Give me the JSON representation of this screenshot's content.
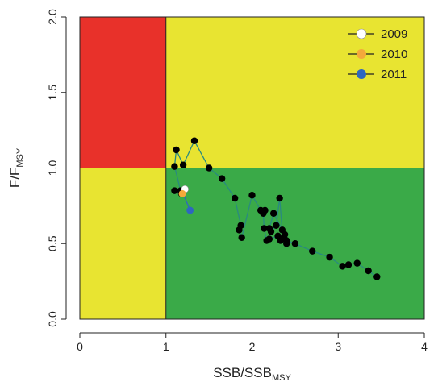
{
  "chart_data": {
    "type": "line",
    "title": "",
    "xlabel": {
      "main": "SSB/SSB",
      "sub": "MSY"
    },
    "ylabel": {
      "main": "F/F",
      "sub": "MSY"
    },
    "xlim": [
      0,
      4
    ],
    "ylim": [
      0,
      2
    ],
    "x_ticks": [
      "0",
      "1",
      "2",
      "3",
      "4"
    ],
    "y_ticks": [
      "0.0",
      "0.5",
      "1.0",
      "1.5",
      "2.0"
    ],
    "grid": false,
    "legend_position": "top-right",
    "reference_lines": {
      "x": 1.0,
      "y": 1.0
    },
    "zones": [
      {
        "name": "red",
        "x": [
          0,
          1
        ],
        "y": [
          1,
          2
        ],
        "color": "#e8312a"
      },
      {
        "name": "yellow-top",
        "x": [
          1,
          4
        ],
        "y": [
          1,
          2
        ],
        "color": "#e8e431"
      },
      {
        "name": "yellow-bottom",
        "x": [
          0,
          1
        ],
        "y": [
          0,
          1
        ],
        "color": "#e8e431"
      },
      {
        "name": "green",
        "x": [
          1,
          4
        ],
        "y": [
          0,
          1
        ],
        "color": "#3aaa48"
      }
    ],
    "series": [
      {
        "line_color": "#2a8a80",
        "marker_color": "#000000",
        "x": [
          3.45,
          3.35,
          3.22,
          3.12,
          3.05,
          2.9,
          2.7,
          2.5,
          2.4,
          2.33,
          2.37,
          2.4,
          2.3,
          2.2,
          2.2,
          2.25,
          2.38,
          2.35,
          2.32,
          2.28,
          2.22,
          2.17,
          2.14,
          2.13,
          2.15,
          2.1,
          2.0,
          1.88,
          1.85,
          1.87,
          1.8,
          1.65,
          1.5,
          1.33,
          1.2,
          1.12,
          1.1,
          1.17,
          1.18,
          1.1,
          1.18
        ],
        "y": [
          0.28,
          0.32,
          0.37,
          0.36,
          0.35,
          0.41,
          0.45,
          0.5,
          0.52,
          0.52,
          0.54,
          0.5,
          0.55,
          0.53,
          0.6,
          0.7,
          0.56,
          0.59,
          0.8,
          0.62,
          0.58,
          0.52,
          0.6,
          0.7,
          0.72,
          0.72,
          0.82,
          0.54,
          0.59,
          0.62,
          0.8,
          0.93,
          1.0,
          1.18,
          1.02,
          1.12,
          1.01,
          0.85,
          0.84,
          0.85,
          0.83
        ]
      },
      {
        "name": "2009",
        "marker_color": "#ffffff",
        "x": [
          1.22
        ],
        "y": [
          0.86
        ]
      },
      {
        "name": "2010",
        "marker_color": "#f4a93b",
        "x": [
          1.19
        ],
        "y": [
          0.83
        ]
      },
      {
        "name": "2011",
        "marker_color": "#2e66c0",
        "x": [
          1.28
        ],
        "y": [
          0.72
        ]
      }
    ],
    "extra_path": {
      "line_color": "#2e66c0",
      "x": [
        1.2,
        1.28
      ],
      "y": [
        0.83,
        0.72
      ]
    }
  }
}
